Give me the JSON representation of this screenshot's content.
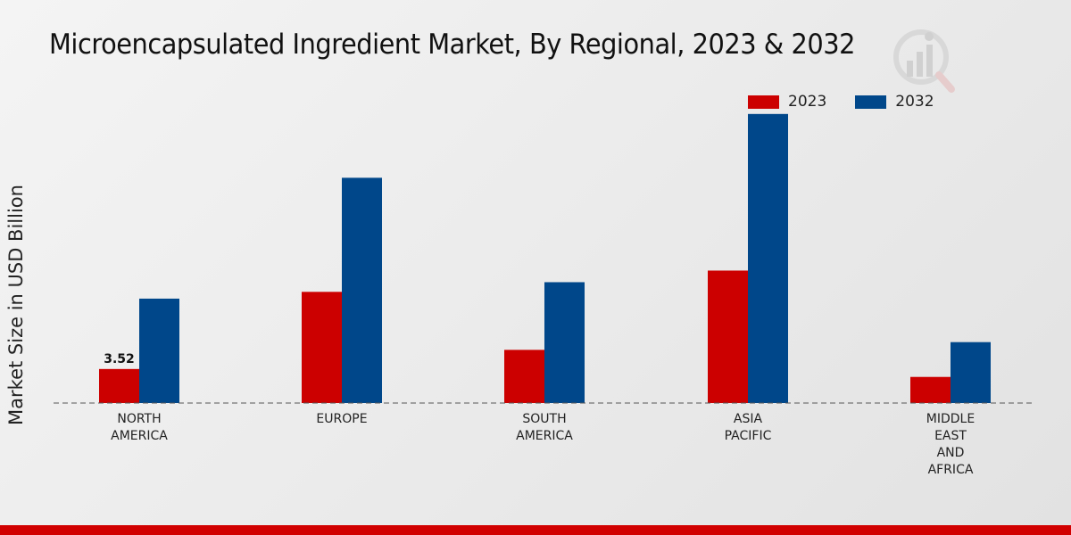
{
  "title": "Microencapsulated Ingredient Market, By Regional, 2023 & 2032",
  "colors": {
    "s2023": "#cc0000",
    "s2032": "#00478a",
    "accent_bar": "#d10000"
  },
  "chart_data": {
    "type": "bar",
    "title": "Microencapsulated Ingredient Market, By Regional, 2023 & 2032",
    "xlabel": "",
    "ylabel": "Market Size in USD Billion",
    "categories": [
      [
        "NORTH",
        "AMERICA"
      ],
      [
        "EUROPE"
      ],
      [
        "SOUTH",
        "AMERICA"
      ],
      [
        "ASIA",
        "PACIFIC"
      ],
      [
        "MIDDLE",
        "EAST",
        "AND",
        "AFRICA"
      ]
    ],
    "series": [
      {
        "name": "2023",
        "color": "#cc0000",
        "values": [
          3.52,
          11.5,
          5.5,
          13.7,
          2.7
        ]
      },
      {
        "name": "2032",
        "color": "#00478a",
        "values": [
          10.8,
          23.3,
          12.5,
          29.9,
          6.3
        ]
      }
    ],
    "data_labels": [
      {
        "series": 0,
        "index": 0,
        "text": "3.52"
      }
    ],
    "ylim": [
      0,
      38
    ],
    "grid": false,
    "legend": "top-right"
  }
}
